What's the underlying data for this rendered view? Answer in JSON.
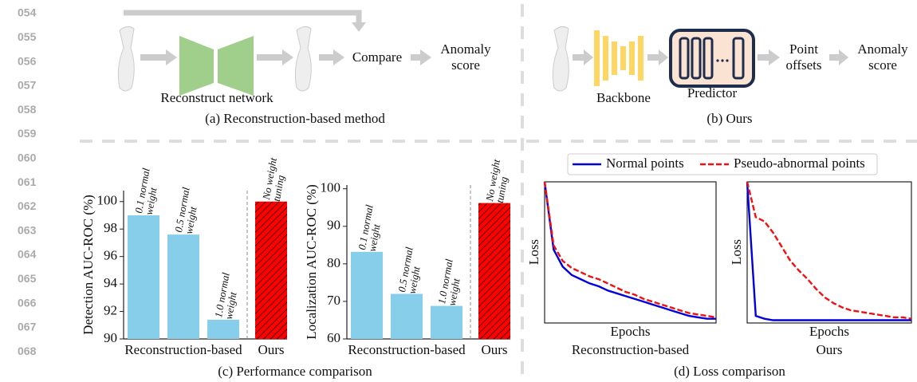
{
  "line_numbers": [
    "054",
    "055",
    "056",
    "057",
    "058",
    "059",
    "060",
    "061",
    "062",
    "063",
    "064",
    "065",
    "066",
    "067",
    "068"
  ],
  "panel_a": {
    "network": "Reconstruct network",
    "compare": "Compare",
    "output": "Anomaly score",
    "caption": "(a) Reconstruction-based method"
  },
  "panel_b": {
    "backbone": "Backbone",
    "predictor": "Predictor",
    "offsets": "Point offsets",
    "output": "Anomaly score",
    "caption": "(b) Ours"
  },
  "panel_c_caption": "(c) Performance comparison",
  "panel_d_caption": "(d) Loss comparison",
  "chart_data": [
    {
      "type": "bar",
      "ylabel": "Detection AUC-ROC (%)",
      "categories": [
        "0.1 normal weight",
        "0.5 normal weight",
        "1.0 normal weight",
        "No weight tuning"
      ],
      "values": [
        99.0,
        97.6,
        91.4,
        100.0
      ],
      "colors": [
        "#87ceeb",
        "#87ceeb",
        "#87ceeb",
        "#ff0000"
      ],
      "hatched": [
        false,
        false,
        false,
        true
      ],
      "groups": [
        "Reconstruction-based",
        "Ours"
      ],
      "ylim": [
        90,
        100.8
      ],
      "yticks": [
        90,
        92,
        94,
        96,
        98,
        100
      ]
    },
    {
      "type": "bar",
      "ylabel": "Localization AUC-ROC (%)",
      "categories": [
        "0.1 normal weight",
        "0.5 normal weight",
        "1.0 normal weight",
        "No weight tuning"
      ],
      "values": [
        83.2,
        72.0,
        68.8,
        96.2
      ],
      "colors": [
        "#87ceeb",
        "#87ceeb",
        "#87ceeb",
        "#ff0000"
      ],
      "hatched": [
        false,
        false,
        false,
        true
      ],
      "groups": [
        "Reconstruction-based",
        "Ours"
      ],
      "ylim": [
        60,
        101
      ],
      "yticks": [
        60,
        70,
        80,
        90,
        100
      ]
    },
    {
      "type": "line",
      "title": "Reconstruction-based",
      "xlabel": "Epochs",
      "ylabel": "Loss",
      "ylim": [
        0,
        1
      ],
      "series": [
        {
          "name": "Normal points",
          "color": "#0000dd",
          "values": [
            1.0,
            0.52,
            0.4,
            0.34,
            0.31,
            0.28,
            0.26,
            0.23,
            0.21,
            0.19,
            0.17,
            0.15,
            0.13,
            0.11,
            0.09,
            0.07,
            0.05,
            0.04,
            0.03,
            0.03
          ]
        },
        {
          "name": "Pseudo-abnormal points",
          "color": "#ee1111",
          "values": [
            1.0,
            0.55,
            0.44,
            0.39,
            0.36,
            0.33,
            0.31,
            0.28,
            0.25,
            0.22,
            0.2,
            0.17,
            0.15,
            0.13,
            0.11,
            0.09,
            0.07,
            0.06,
            0.05,
            0.04
          ]
        }
      ]
    },
    {
      "type": "line",
      "title": "Ours",
      "xlabel": "Epochs",
      "ylabel": "Loss",
      "ylim": [
        0,
        1
      ],
      "series": [
        {
          "color": "#0000dd",
          "values": [
            1.0,
            0.05,
            0.03,
            0.02,
            0.02,
            0.02,
            0.02,
            0.02,
            0.02,
            0.02,
            0.02,
            0.02,
            0.02,
            0.02,
            0.02,
            0.02,
            0.02,
            0.02,
            0.02,
            0.02
          ]
        },
        {
          "color": "#ee1111",
          "values": [
            1.0,
            0.75,
            0.72,
            0.64,
            0.54,
            0.44,
            0.37,
            0.31,
            0.24,
            0.18,
            0.14,
            0.11,
            0.09,
            0.08,
            0.07,
            0.06,
            0.05,
            0.04,
            0.04,
            0.03
          ]
        }
      ]
    }
  ]
}
